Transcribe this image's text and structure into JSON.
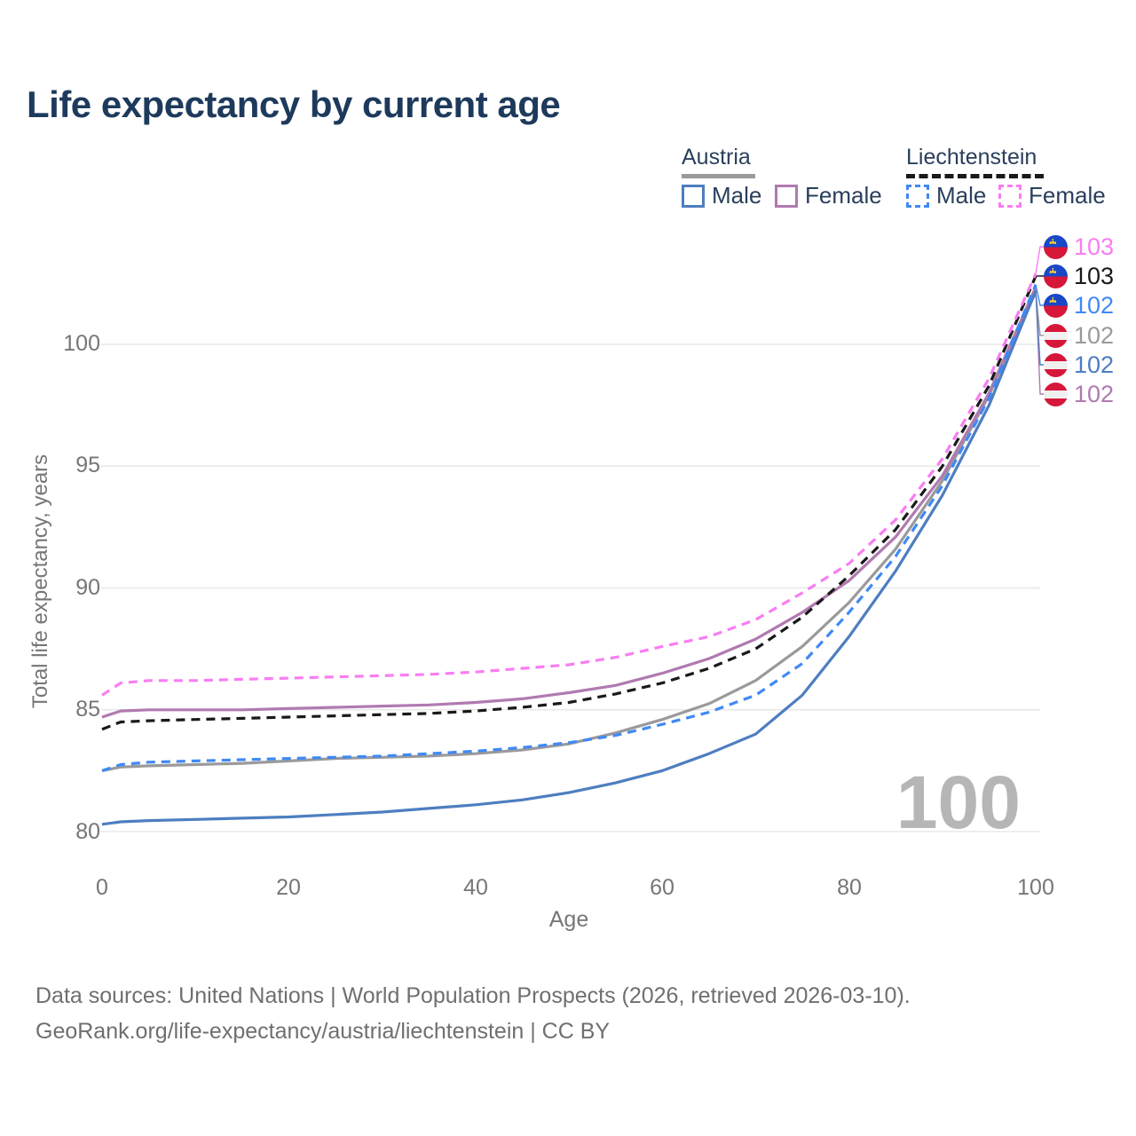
{
  "title": "Life expectancy by current age",
  "watermark": "100",
  "axes": {
    "y_title": "Total life expectancy, years",
    "x_title": "Age",
    "y_ticks": [
      "100",
      "95",
      "90",
      "85",
      "80"
    ],
    "x_ticks": [
      "0",
      "20",
      "40",
      "60",
      "80",
      "100"
    ]
  },
  "legend": {
    "austria": {
      "label": "Austria",
      "male_label": "Male",
      "female_label": "Female",
      "total_color": "#9a9a9a",
      "male_color": "#4d7ec0",
      "female_color": "#b07ab0"
    },
    "liechtenstein": {
      "label": "Liechtenstein",
      "male_label": "Male",
      "female_label": "Female",
      "total_color": "#1a1a1a",
      "male_color": "#4089f5",
      "female_color": "#f97df2"
    }
  },
  "end_labels": [
    {
      "value": "103",
      "color": "#f97df2",
      "flag": "liechtenstein",
      "series": "Liechtenstein Female"
    },
    {
      "value": "103",
      "color": "#1a1a1a",
      "flag": "liechtenstein",
      "series": "Liechtenstein Total"
    },
    {
      "value": "102",
      "color": "#4089f5",
      "flag": "liechtenstein",
      "series": "Liechtenstein Male"
    },
    {
      "value": "102",
      "color": "#9a9a9a",
      "flag": "austria",
      "series": "Austria Total"
    },
    {
      "value": "102",
      "color": "#4d7ec0",
      "flag": "austria",
      "series": "Austria Male"
    },
    {
      "value": "102",
      "color": "#b07ab0",
      "flag": "austria",
      "series": "Austria Female"
    }
  ],
  "footer": {
    "line1": "Data sources: United Nations | World Population Prospects (2026, retrieved 2026-03-10).",
    "line2": "GeoRank.org/life-expectancy/austria/liechtenstein | CC BY"
  },
  "chart_data": {
    "type": "line",
    "title": "Life expectancy by current age",
    "xlabel": "Age",
    "ylabel": "Total life expectancy, years",
    "xlim": [
      0,
      100
    ],
    "ylim": [
      78.2,
      103.6
    ],
    "xticks": [
      0,
      20,
      40,
      60,
      80,
      100
    ],
    "yticks": [
      100,
      95,
      90,
      85,
      80
    ],
    "grid": "horizontal",
    "legend_position": "top-right",
    "x": [
      0,
      2,
      5,
      10,
      15,
      20,
      25,
      30,
      35,
      40,
      45,
      50,
      55,
      60,
      65,
      70,
      75,
      80,
      85,
      90,
      95,
      100
    ],
    "series": [
      {
        "name": "Austria Total",
        "country": "Austria",
        "group": "Total",
        "color": "#9a9a9a",
        "dashed": false,
        "label_row": 3,
        "values": [
          82.5,
          82.65,
          82.7,
          82.75,
          82.8,
          82.9,
          83.0,
          83.05,
          83.1,
          83.2,
          83.35,
          83.6,
          84.05,
          84.6,
          85.25,
          86.2,
          87.6,
          89.4,
          91.6,
          94.4,
          97.9,
          102.15
        ]
      },
      {
        "name": "Austria Female",
        "country": "Austria",
        "group": "Female",
        "color": "#b07ab0",
        "dashed": false,
        "label_row": 5,
        "values": [
          84.7,
          84.95,
          85.0,
          85.0,
          85.0,
          85.05,
          85.1,
          85.15,
          85.2,
          85.3,
          85.45,
          85.7,
          86.0,
          86.5,
          87.1,
          87.9,
          89.0,
          90.3,
          92.1,
          94.6,
          98.0,
          102.35
        ]
      },
      {
        "name": "Austria Male",
        "country": "Austria",
        "group": "Male",
        "color": "#4d7ec0",
        "dashed": false,
        "label_row": 4,
        "values": [
          80.3,
          80.4,
          80.45,
          80.5,
          80.55,
          80.6,
          80.7,
          80.8,
          80.95,
          81.1,
          81.3,
          81.6,
          82.0,
          82.5,
          83.2,
          84.0,
          85.6,
          88.0,
          90.7,
          93.8,
          97.5,
          102.2
        ]
      },
      {
        "name": "Liechtenstein Total",
        "country": "Liechtenstein",
        "group": "Total",
        "color": "#1a1a1a",
        "dashed": true,
        "label_row": 1,
        "values": [
          84.2,
          84.5,
          84.55,
          84.6,
          84.65,
          84.7,
          84.75,
          84.8,
          84.85,
          84.95,
          85.1,
          85.3,
          85.65,
          86.1,
          86.7,
          87.5,
          88.8,
          90.5,
          92.4,
          95.0,
          98.3,
          102.8
        ]
      },
      {
        "name": "Liechtenstein Male",
        "country": "Liechtenstein",
        "group": "Male",
        "color": "#4089f5",
        "dashed": true,
        "label_row": 2,
        "values": [
          82.5,
          82.75,
          82.85,
          82.9,
          82.95,
          83.0,
          83.05,
          83.1,
          83.2,
          83.3,
          83.45,
          83.65,
          83.95,
          84.4,
          84.9,
          85.6,
          86.9,
          89.0,
          91.3,
          94.2,
          97.8,
          102.45
        ]
      },
      {
        "name": "Liechtenstein Female",
        "country": "Liechtenstein",
        "group": "Female",
        "color": "#f97df2",
        "dashed": true,
        "label_row": 0,
        "values": [
          85.6,
          86.1,
          86.2,
          86.2,
          86.25,
          86.3,
          86.35,
          86.4,
          86.45,
          86.55,
          86.7,
          86.85,
          87.15,
          87.6,
          88.0,
          88.7,
          89.8,
          91.0,
          92.8,
          95.3,
          98.6,
          102.9
        ]
      }
    ]
  }
}
